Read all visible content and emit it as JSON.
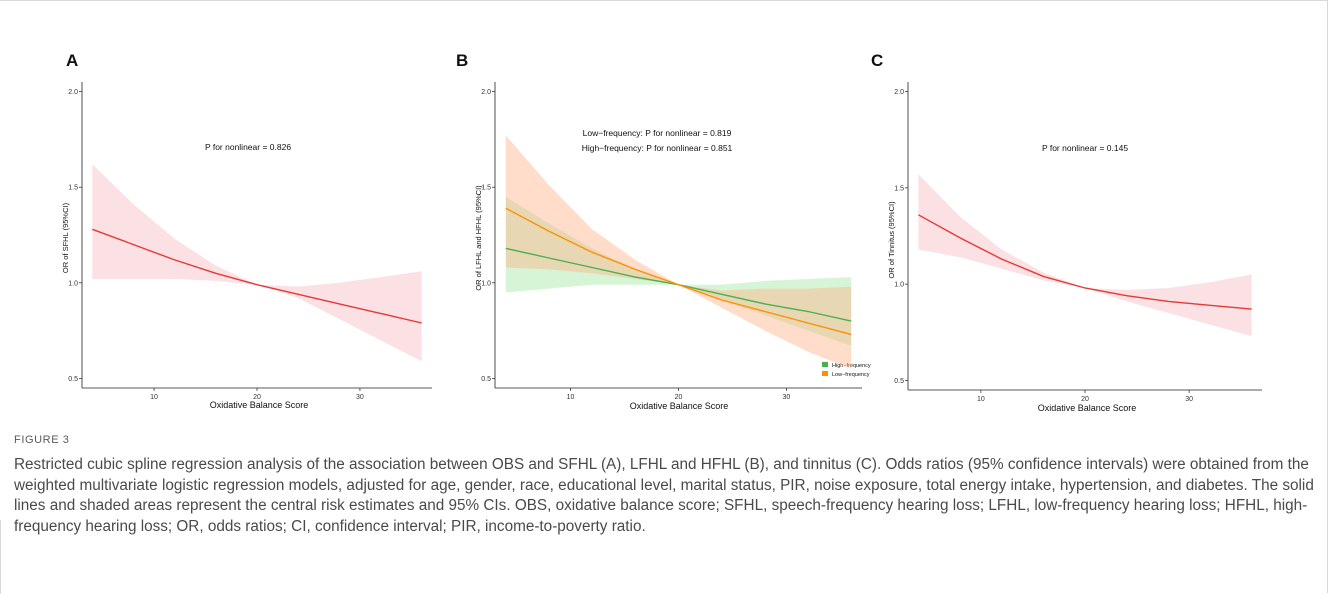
{
  "figure_label": "FIGURE 3",
  "caption": "Restricted cubic spline regression analysis of the association between OBS and SFHL (A), LFHL and HFHL (B), and tinnitus (C). Odds ratios (95% confidence intervals) were obtained from the weighted multivariate logistic regression models, adjusted for age, gender, race, educational level, marital status, PIR, noise exposure, total energy intake, hypertension, and diabetes. The solid lines and shaded areas represent the central risk estimates and 95% CIs. OBS, oxidative balance score; SFHL, speech-frequency hearing loss; LFHL, low-frequency hearing loss; HFHL, high-frequency hearing loss; OR, odds ratios; CI, confidence interval; PIR, income-to-poverty ratio.",
  "colors": {
    "red": "#e53935",
    "green": "#4caf50",
    "orange": "#ff8f00",
    "red_band": "#f8bcc4",
    "green_band": "#a5e6a5",
    "orange_band": "#ffb38a"
  },
  "chart_data": [
    {
      "panel": "A",
      "type": "line",
      "xlabel": "Oxidative Balance Score",
      "ylabel": "OR of SFHL (95%CI)",
      "annotations": [
        "P for nonlinear = 0.826"
      ],
      "xlim": [
        3,
        37
      ],
      "ylim": [
        0.45,
        2.05
      ],
      "xticks": [
        10,
        20,
        30
      ],
      "yticks": [
        0.5,
        1.0,
        1.5,
        2.0
      ],
      "ytick_labels": [
        "0.5",
        "1.0",
        "1.5",
        "2.0"
      ],
      "series": [
        {
          "color_key": "red",
          "band_key": "red_band",
          "x": [
            4,
            8,
            12,
            16,
            20,
            24,
            28,
            32,
            36
          ],
          "y": [
            1.28,
            1.2,
            1.12,
            1.05,
            0.99,
            0.94,
            0.89,
            0.84,
            0.79
          ],
          "lower": [
            1.02,
            1.02,
            1.02,
            1.01,
            0.99,
            0.92,
            0.81,
            0.7,
            0.59
          ],
          "upper": [
            1.62,
            1.41,
            1.23,
            1.09,
            0.99,
            0.98,
            1.0,
            1.03,
            1.06
          ]
        }
      ]
    },
    {
      "panel": "B",
      "type": "line",
      "xlabel": "Oxidative Balance Score",
      "ylabel": "OR of LFHL and HFHL (95%CI)",
      "annotations": [
        "Low−frequency: P for nonlinear = 0.819",
        "High−frequency: P for nonlinear = 0.851"
      ],
      "xlim": [
        3,
        37
      ],
      "ylim": [
        0.45,
        2.05
      ],
      "xticks": [
        10,
        20,
        30
      ],
      "yticks": [
        0.5,
        1.0,
        1.5,
        2.0
      ],
      "ytick_labels": [
        "0.5",
        "1.0",
        "1.5",
        "2.0"
      ],
      "legend": {
        "placement": "bottom-right",
        "entries": [
          {
            "label": "High−frequency",
            "color_key": "green"
          },
          {
            "label": "Low−frequency",
            "color_key": "orange"
          }
        ]
      },
      "series": [
        {
          "name": "High−frequency",
          "color_key": "green",
          "band_key": "green_band",
          "x": [
            4,
            8,
            12,
            16,
            20,
            24,
            28,
            32,
            36
          ],
          "y": [
            1.18,
            1.13,
            1.08,
            1.03,
            0.99,
            0.94,
            0.89,
            0.85,
            0.8
          ],
          "lower": [
            0.95,
            0.97,
            0.99,
            0.99,
            0.99,
            0.91,
            0.83,
            0.75,
            0.67
          ],
          "upper": [
            1.45,
            1.31,
            1.18,
            1.07,
            0.99,
            0.99,
            1.01,
            1.02,
            1.03
          ]
        },
        {
          "name": "Low−frequency",
          "color_key": "orange",
          "band_key": "orange_band",
          "x": [
            4,
            8,
            12,
            16,
            20,
            24,
            28,
            32,
            36
          ],
          "y": [
            1.39,
            1.27,
            1.16,
            1.07,
            0.99,
            0.91,
            0.85,
            0.79,
            0.73
          ],
          "lower": [
            1.08,
            1.07,
            1.05,
            1.02,
            0.99,
            0.87,
            0.75,
            0.64,
            0.55
          ],
          "upper": [
            1.77,
            1.51,
            1.28,
            1.12,
            0.99,
            0.96,
            0.97,
            0.97,
            0.98
          ]
        }
      ]
    },
    {
      "panel": "C",
      "type": "line",
      "xlabel": "Oxidative Balance Score",
      "ylabel": "OR of Tinnitus (95%CI)",
      "annotations": [
        "P for nonlinear = 0.145"
      ],
      "xlim": [
        3,
        37
      ],
      "ylim": [
        0.45,
        2.05
      ],
      "xticks": [
        10,
        20,
        30
      ],
      "yticks": [
        0.5,
        1.0,
        1.5,
        2.0
      ],
      "ytick_labels": [
        "0.5",
        "1.0",
        "1.5",
        "2.0"
      ],
      "series": [
        {
          "color_key": "red",
          "band_key": "red_band",
          "x": [
            4,
            8,
            12,
            16,
            20,
            24,
            28,
            32,
            36
          ],
          "y": [
            1.36,
            1.24,
            1.13,
            1.04,
            0.98,
            0.94,
            0.91,
            0.89,
            0.87
          ],
          "lower": [
            1.18,
            1.14,
            1.08,
            1.02,
            0.98,
            0.91,
            0.85,
            0.79,
            0.73
          ],
          "upper": [
            1.57,
            1.35,
            1.18,
            1.06,
            0.98,
            0.97,
            0.98,
            1.01,
            1.05
          ]
        }
      ]
    }
  ]
}
